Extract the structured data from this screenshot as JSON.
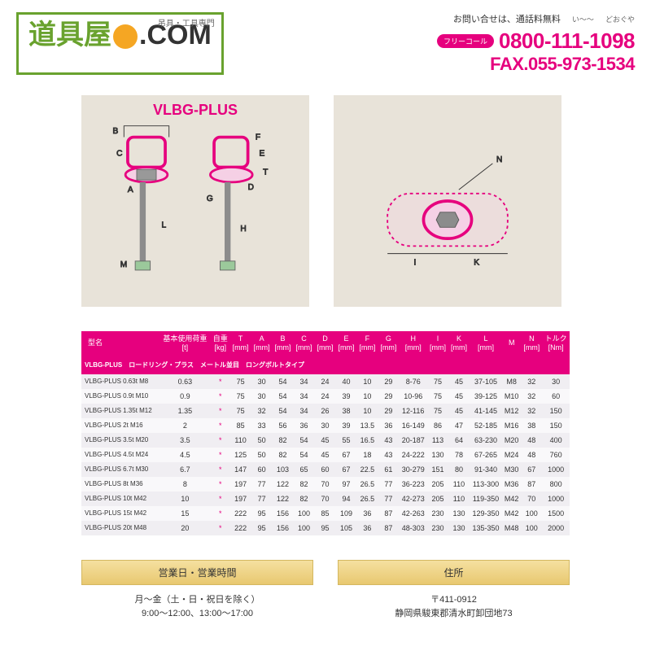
{
  "header": {
    "logo_main": "道具屋",
    "logo_ext": ".COM",
    "logo_sub": "吊具・工具専門",
    "contact_label": "お問い合せは、通話料無料",
    "ruby1": "い～～",
    "ruby2": "どおぐや",
    "freecall": "フリーコール",
    "phone": "0800-111-1098",
    "fax": "FAX.055-973-1534"
  },
  "diagram": {
    "title": "VLBG-PLUS",
    "labels": {
      "A": "A",
      "B": "B",
      "C": "C",
      "D": "D",
      "E": "E",
      "F": "F",
      "G": "G",
      "H": "H",
      "I": "I",
      "K": "K",
      "L": "L",
      "M": "M",
      "N": "N",
      "T": "T"
    },
    "colors": {
      "bg": "#e8e3d9",
      "magenta": "#e6007e",
      "line": "#333",
      "bolt": "#8c8c8c"
    }
  },
  "table": {
    "headers": [
      "型名",
      "基本使用荷重\n[t]",
      "自重\n[kg]",
      "T\n[mm]",
      "A\n[mm]",
      "B\n[mm]",
      "C\n[mm]",
      "D\n[mm]",
      "E\n[mm]",
      "F\n[mm]",
      "G\n[mm]",
      "H\n[mm]",
      "I\n[mm]",
      "K\n[mm]",
      "L\n[mm]",
      "M",
      "N\n[mm]",
      "トルク\n[Nm]"
    ],
    "subheader": "VLBG-PLUS　ロードリング・プラス　メートル並目　ロングボルトタイプ",
    "rows": [
      [
        "VLBG-PLUS 0.63t M8",
        "0.63",
        "*",
        "75",
        "30",
        "54",
        "34",
        "24",
        "40",
        "10",
        "29",
        "8-76",
        "75",
        "45",
        "37-105",
        "M8",
        "32",
        "30"
      ],
      [
        "VLBG-PLUS 0.9t M10",
        "0.9",
        "*",
        "75",
        "30",
        "54",
        "34",
        "24",
        "39",
        "10",
        "29",
        "10-96",
        "75",
        "45",
        "39-125",
        "M10",
        "32",
        "60"
      ],
      [
        "VLBG-PLUS 1.35t M12",
        "1.35",
        "*",
        "75",
        "32",
        "54",
        "34",
        "26",
        "38",
        "10",
        "29",
        "12-116",
        "75",
        "45",
        "41-145",
        "M12",
        "32",
        "150"
      ],
      [
        "VLBG-PLUS 2t M16",
        "2",
        "*",
        "85",
        "33",
        "56",
        "36",
        "30",
        "39",
        "13.5",
        "36",
        "16-149",
        "86",
        "47",
        "52-185",
        "M16",
        "38",
        "150"
      ],
      [
        "VLBG-PLUS 3.5t M20",
        "3.5",
        "*",
        "110",
        "50",
        "82",
        "54",
        "45",
        "55",
        "16.5",
        "43",
        "20-187",
        "113",
        "64",
        "63-230",
        "M20",
        "48",
        "400"
      ],
      [
        "VLBG-PLUS 4.5t M24",
        "4.5",
        "*",
        "125",
        "50",
        "82",
        "54",
        "45",
        "67",
        "18",
        "43",
        "24-222",
        "130",
        "78",
        "67-265",
        "M24",
        "48",
        "760"
      ],
      [
        "VLBG-PLUS 6.7t M30",
        "6.7",
        "*",
        "147",
        "60",
        "103",
        "65",
        "60",
        "67",
        "22.5",
        "61",
        "30-279",
        "151",
        "80",
        "91-340",
        "M30",
        "67",
        "1000"
      ],
      [
        "VLBG-PLUS 8t M36",
        "8",
        "*",
        "197",
        "77",
        "122",
        "82",
        "70",
        "97",
        "26.5",
        "77",
        "36-223",
        "205",
        "110",
        "113-300",
        "M36",
        "87",
        "800"
      ],
      [
        "VLBG-PLUS 10t M42",
        "10",
        "*",
        "197",
        "77",
        "122",
        "82",
        "70",
        "94",
        "26.5",
        "77",
        "42-273",
        "205",
        "110",
        "119-350",
        "M42",
        "70",
        "1000"
      ],
      [
        "VLBG-PLUS 15t M42",
        "15",
        "*",
        "222",
        "95",
        "156",
        "100",
        "85",
        "109",
        "36",
        "87",
        "42-263",
        "230",
        "130",
        "129-350",
        "M42",
        "100",
        "1500"
      ],
      [
        "VLBG-PLUS 20t M48",
        "20",
        "*",
        "222",
        "95",
        "156",
        "100",
        "95",
        "105",
        "36",
        "87",
        "48-303",
        "230",
        "130",
        "135-350",
        "M48",
        "100",
        "2000"
      ]
    ],
    "colors": {
      "header_bg": "#e6007e",
      "header_fg": "#fff",
      "row_even": "#f0eef2",
      "row_odd": "#f9f8fa"
    }
  },
  "footer": {
    "hours_head": "営業日・営業時間",
    "hours_body1": "月～金（土・日・祝日を除く）",
    "hours_body2": "9:00～12:00、13:00～17:00",
    "addr_head": "住所",
    "addr_body1": "〒411-0912",
    "addr_body2": "静岡県駿東郡清水町卸団地73"
  }
}
